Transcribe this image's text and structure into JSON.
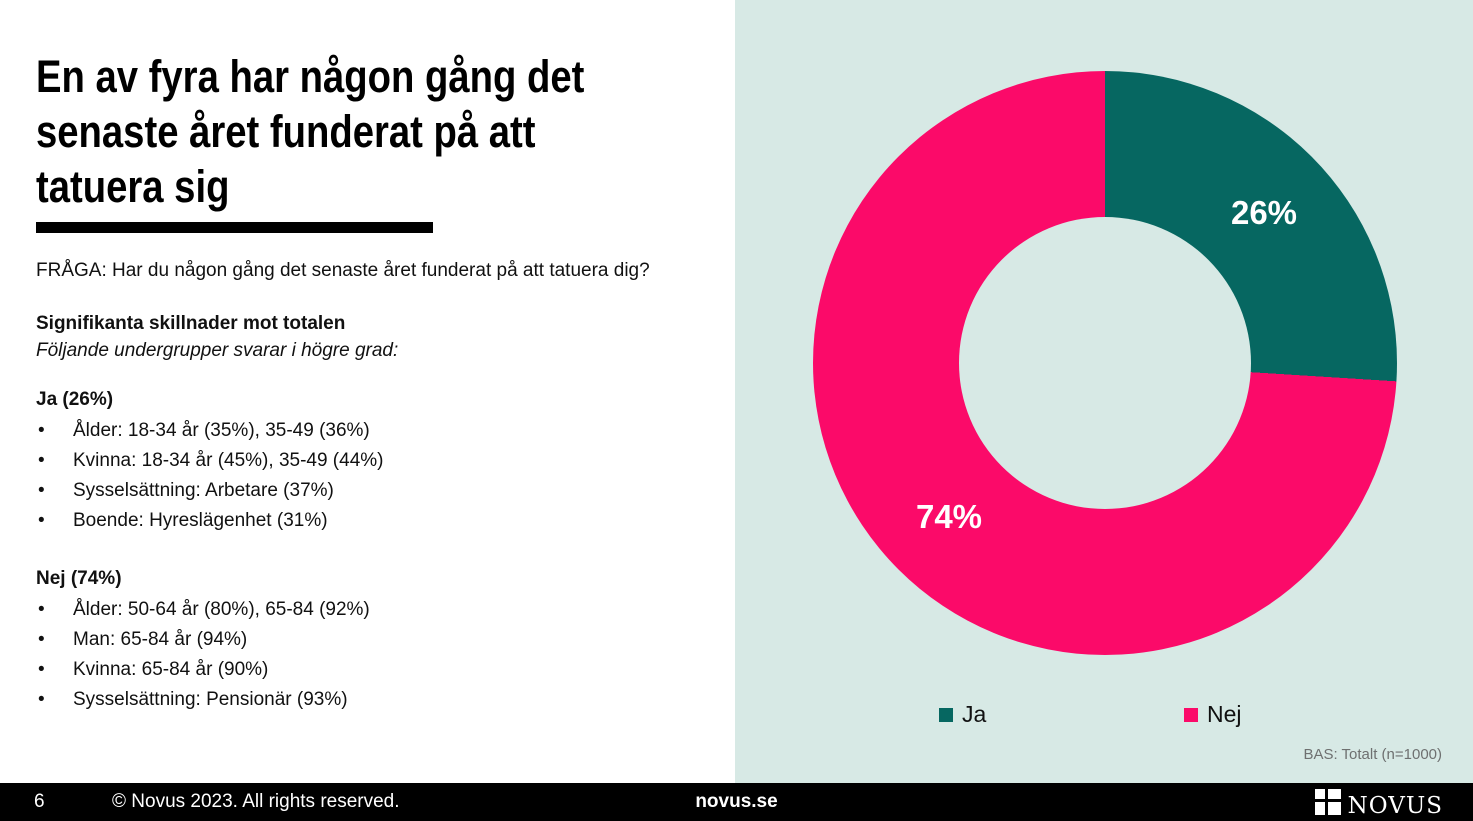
{
  "colors": {
    "teal": "#066761",
    "pink": "#FB0A69",
    "mint": "#D7E9E5",
    "footer_bg": "#000000",
    "bas_gray": "#6E7070"
  },
  "content": {
    "title_lines": [
      "En av fyra har någon gång det",
      "senaste året funderat på att",
      "tatuera sig"
    ],
    "question": "FRÅGA: Har du någon gång det senaste året funderat på att tatuera dig?",
    "subheading_bold": "Signifikanta skillnader mot totalen",
    "subheading_italic": "Följande undergrupper svarar i högre grad:",
    "groups": [
      {
        "heading": "Ja (26%)",
        "bullets": [
          "Ålder: 18-34 år (35%), 35-49 (36%)",
          "Kvinna: 18-34 år (45%), 35-49 (44%)",
          "Sysselsättning: Arbetare (37%)",
          "Boende: Hyreslägenhet (31%)"
        ]
      },
      {
        "heading": "Nej (74%)",
        "bullets": [
          "Ålder: 50-64 år (80%), 65-84 (92%)",
          "Man: 65-84 år (94%)",
          "Kvinna: 65-84 år (90%)",
          "Sysselsättning: Pensionär (93%)"
        ]
      }
    ]
  },
  "chart": {
    "slice_labels": {
      "ja": "26%",
      "nej": "74%"
    },
    "legend": [
      {
        "label": "Ja"
      },
      {
        "label": "Nej"
      }
    ],
    "bas_note": "BAS: Totalt (n=1000)"
  },
  "chart_data": {
    "type": "pie",
    "subtype": "donut",
    "categories": [
      "Ja",
      "Nej"
    ],
    "values": [
      26,
      74
    ],
    "unit": "%",
    "colors": [
      "#066761",
      "#FB0A69"
    ],
    "data_labels": [
      "26%",
      "74%"
    ],
    "legend_position": "bottom",
    "start_angle_deg": 0,
    "direction": "clockwise",
    "note": "BAS: Totalt (n=1000)"
  },
  "footer": {
    "slide_number": "6",
    "copyright": "© Novus 2023. All rights reserved.",
    "website": "novus.se",
    "logo_text": "novus"
  }
}
